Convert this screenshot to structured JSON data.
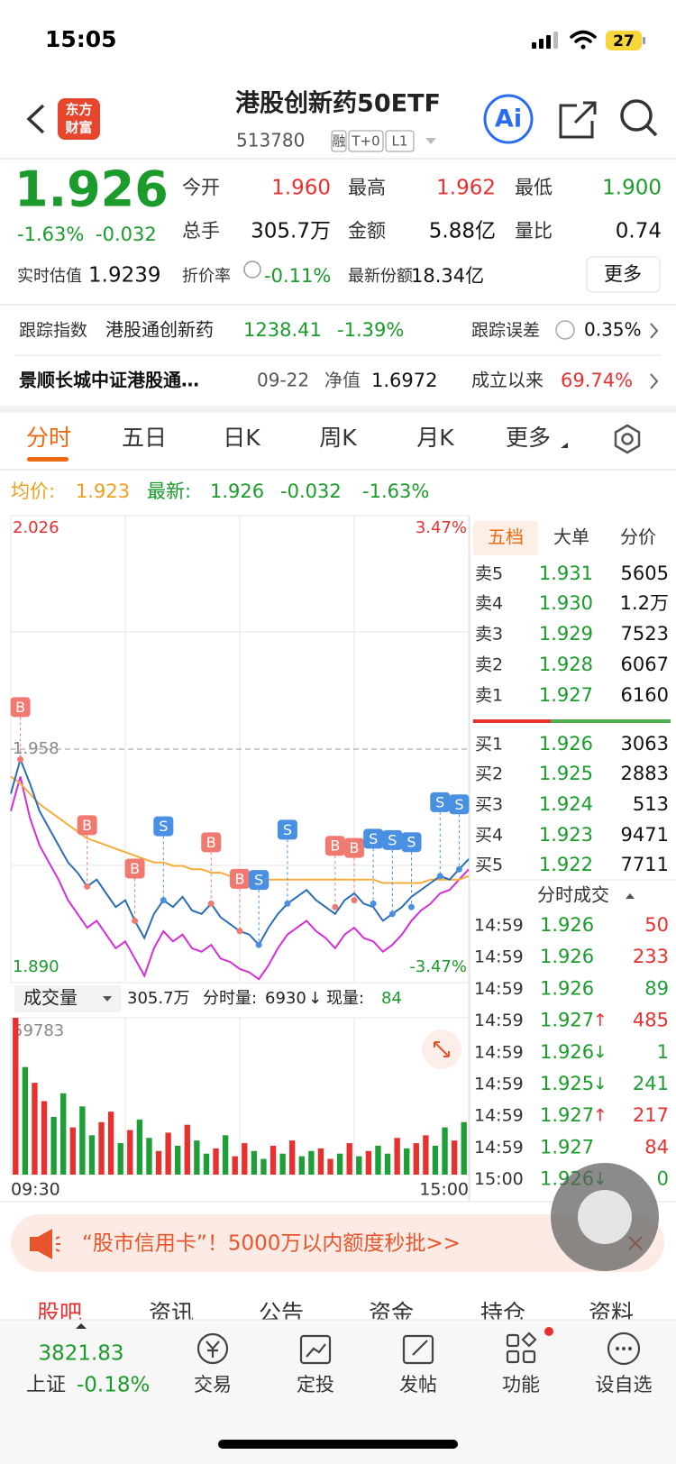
{
  "status_bar": {
    "time": "15:05",
    "battery": "27"
  },
  "header": {
    "logo": [
      "东方",
      "财富"
    ],
    "title": "港股创新药50ETF",
    "code": "513780",
    "tags": [
      "融",
      "T+0",
      "L1"
    ],
    "ai": "Ai"
  },
  "quote": {
    "price": "1.926",
    "change_pct": "-1.63%",
    "change": "-0.032",
    "stats": [
      {
        "label": "今开",
        "value": "1.960"
      },
      {
        "label": "最高",
        "value": "1.962"
      },
      {
        "label": "最低",
        "value": "1.900"
      },
      {
        "label": "总手",
        "value": "305.7万"
      },
      {
        "label": "金额",
        "value": "5.88亿"
      },
      {
        "label": "量比",
        "value": "0.74"
      }
    ],
    "estimate_label": "实时估值",
    "estimate": "1.9239",
    "discount_label": "折价率",
    "discount": "-0.11%",
    "shares_label": "最新份额",
    "shares": "18.34亿",
    "more": "更多"
  },
  "tracking": {
    "label": "跟踪指数",
    "index": "港股通创新药",
    "index_value": "1238.41",
    "index_change": "-1.39%",
    "error_label": "跟踪误差",
    "error": "0.35%"
  },
  "fund": {
    "name": "景顺长城中证港股通…",
    "date": "09-22",
    "nav_label": "净值",
    "nav": "1.6972",
    "since_label": "成立以来",
    "since": "69.74%"
  },
  "tabs": [
    "分时",
    "五日",
    "日K",
    "周K",
    "月K",
    "更多"
  ],
  "summary": {
    "avg_label": "均价:",
    "avg": "1.923",
    "last_label": "最新:",
    "last": "1.926",
    "change": "-0.032",
    "change_pct": "-1.63%"
  },
  "chart_data": [
    {
      "type": "line",
      "ylim": [
        1.89,
        2.026
      ],
      "yticks": [
        2.026,
        1.958,
        {
          "value": 1.89,
          "label": "1.890"
        }
      ],
      "y2lim": [
        -3.47,
        3.47
      ],
      "y2ticks": [
        {
          "value": 3.47,
          "label": "3.47%"
        },
        {
          "value": -3.47,
          "label": "-3.47%"
        }
      ],
      "series": [
        {
          "color": "#d62ed6",
          "values": [
            1.94,
            1.95,
            1.938,
            1.93,
            1.925,
            1.92,
            1.914,
            1.91,
            1.906,
            1.908,
            1.904,
            1.9,
            1.902,
            1.897,
            1.892,
            1.9,
            1.905,
            1.902,
            1.904,
            1.9,
            1.899,
            1.901,
            1.897,
            1.896,
            1.894,
            1.893,
            1.891,
            1.895,
            1.9,
            1.904,
            1.906,
            1.908,
            1.905,
            1.903,
            1.9,
            1.904,
            1.906,
            1.903,
            1.902,
            1.899,
            1.901,
            1.904,
            1.908,
            1.911,
            1.913,
            1.916,
            1.917,
            1.92,
            1.923
          ]
        },
        {
          "color": "#f5ad3b",
          "values": [
            1.95,
            1.948,
            1.945,
            1.942,
            1.94,
            1.938,
            1.936,
            1.934,
            1.932,
            1.931,
            1.93,
            1.929,
            1.928,
            1.927,
            1.926,
            1.925,
            1.925,
            1.924,
            1.924,
            1.923,
            1.923,
            1.922,
            1.922,
            1.921,
            1.921,
            1.921,
            1.92,
            1.92,
            1.92,
            1.92,
            1.92,
            1.92,
            1.92,
            1.92,
            1.92,
            1.92,
            1.92,
            1.92,
            1.92,
            1.919,
            1.919,
            1.919,
            1.919,
            1.919,
            1.92,
            1.92,
            1.92,
            1.92,
            1.921
          ]
        },
        {
          "color": "#2d6db5",
          "values": [
            1.945,
            1.955,
            1.948,
            1.94,
            1.935,
            1.93,
            1.925,
            1.922,
            1.918,
            1.92,
            1.916,
            1.912,
            1.914,
            1.908,
            1.903,
            1.91,
            1.914,
            1.912,
            1.915,
            1.911,
            1.91,
            1.913,
            1.909,
            1.907,
            1.905,
            1.904,
            1.901,
            1.906,
            1.91,
            1.913,
            1.915,
            1.917,
            1.914,
            1.912,
            1.91,
            1.914,
            1.916,
            1.913,
            1.912,
            1.908,
            1.91,
            1.912,
            1.915,
            1.917,
            1.919,
            1.921,
            1.92,
            1.923,
            1.926
          ]
        }
      ],
      "markers": [
        {
          "label": "B",
          "x": 1,
          "value": 1.955
        },
        {
          "label": "B",
          "x": 8,
          "value": 1.918
        },
        {
          "label": "B",
          "x": 13,
          "value": 1.908
        },
        {
          "label": "B",
          "x": 21,
          "value": 1.913
        },
        {
          "label": "B",
          "x": 24,
          "value": 1.905
        },
        {
          "label": "B",
          "x": 34,
          "value": 1.912
        },
        {
          "label": "B",
          "x": 36,
          "value": 1.914
        },
        {
          "label": "S",
          "x": 16,
          "value": 1.914
        },
        {
          "label": "S",
          "x": 26,
          "value": 1.901
        },
        {
          "label": "S",
          "x": 29,
          "value": 1.913
        },
        {
          "label": "S",
          "x": 38,
          "value": 1.913
        },
        {
          "label": "S",
          "x": 40,
          "value": 1.91
        },
        {
          "label": "S",
          "x": 42,
          "value": 1.912
        },
        {
          "label": "S",
          "x": 45,
          "value": 1.921
        },
        {
          "label": "S",
          "x": 47,
          "value": 1.923
        }
      ]
    },
    {
      "type": "bar",
      "title": "成交量",
      "ylim": [
        0,
        59783
      ],
      "yticks": [
        59783
      ],
      "categories": [
        "09:30",
        null,
        null,
        null,
        null,
        null,
        null,
        null,
        null,
        null,
        null,
        null,
        null,
        null,
        null,
        null,
        null,
        null,
        null,
        null,
        null,
        null,
        null,
        null,
        null,
        null,
        null,
        null,
        null,
        null,
        null,
        null,
        null,
        null,
        null,
        null,
        null,
        null,
        null,
        null,
        null,
        null,
        null,
        null,
        null,
        null,
        null,
        "15:00"
      ],
      "values": [
        59783,
        41000,
        35000,
        28000,
        22000,
        31000,
        18000,
        26000,
        15000,
        20000,
        24000,
        12000,
        17000,
        21000,
        14000,
        9000,
        16000,
        11000,
        19000,
        13000,
        8000,
        10000,
        15000,
        7000,
        12000,
        9000,
        6000,
        11000,
        8000,
        13000,
        7000,
        9000,
        10000,
        6000,
        8000,
        12000,
        7000,
        9000,
        11000,
        8000,
        14000,
        10000,
        12000,
        15000,
        11000,
        18000,
        13000,
        20000
      ],
      "colors": [
        "#e8312f",
        "#1e9e36",
        "#e8312f",
        "#e8312f",
        "#1e9e36",
        "#1e9e36",
        "#e8312f",
        "#1e9e36",
        "#1e9e36",
        "#e8312f",
        "#e8312f",
        "#1e9e36",
        "#e8312f",
        "#1e9e36",
        "#1e9e36",
        "#e8312f",
        "#e8312f",
        "#1e9e36",
        "#e8312f",
        "#1e9e36",
        "#1e9e36",
        "#e8312f",
        "#1e9e36",
        "#e8312f",
        "#e8312f",
        "#1e9e36",
        "#1e9e36",
        "#e8312f",
        "#1e9e36",
        "#e8312f",
        "#1e9e36",
        "#1e9e36",
        "#e8312f",
        "#e8312f",
        "#1e9e36",
        "#e8312f",
        "#1e9e36",
        "#e8312f",
        "#1e9e36",
        "#1e9e36",
        "#e8312f",
        "#1e9e36",
        "#e8312f",
        "#e8312f",
        "#1e9e36",
        "#1e9e36",
        "#e8312f",
        "#1e9e36"
      ]
    }
  ],
  "volume_toolbar": {
    "total": "305.7万",
    "interval_label": "分时量:",
    "interval": "6930",
    "arrow": "↓",
    "current_label": "现量:",
    "current": "84"
  },
  "order_book": {
    "tabs": [
      "五档",
      "大单",
      "分价"
    ],
    "asks": [
      {
        "label": "卖5",
        "price": "1.931",
        "volume": "5605"
      },
      {
        "label": "卖4",
        "price": "1.930",
        "volume": "1.2万"
      },
      {
        "label": "卖3",
        "price": "1.929",
        "volume": "7523"
      },
      {
        "label": "卖2",
        "price": "1.928",
        "volume": "6067"
      },
      {
        "label": "卖1",
        "price": "1.927",
        "volume": "6160"
      }
    ],
    "bids": [
      {
        "label": "买1",
        "price": "1.926",
        "volume": "3063"
      },
      {
        "label": "买2",
        "price": "1.925",
        "volume": "2883"
      },
      {
        "label": "买3",
        "price": "1.924",
        "volume": "513"
      },
      {
        "label": "买4",
        "price": "1.923",
        "volume": "9471"
      },
      {
        "label": "买5",
        "price": "1.922",
        "volume": "7711"
      }
    ]
  },
  "trades": {
    "title": "分时成交",
    "rows": [
      {
        "time": "14:59",
        "price": "1.926",
        "volume": "50",
        "color": "#e8312f"
      },
      {
        "time": "14:59",
        "price": "1.926",
        "volume": "233",
        "color": "#e8312f"
      },
      {
        "time": "14:59",
        "price": "1.926",
        "volume": "89",
        "color": "#1e9e36"
      },
      {
        "time": "14:59",
        "price": "1.927",
        "arrow": "↑",
        "volume": "485",
        "color": "#e8312f"
      },
      {
        "time": "14:59",
        "price": "1.926",
        "arrow": "↓",
        "volume": "1",
        "color": "#1e9e36"
      },
      {
        "time": "14:59",
        "price": "1.925",
        "arrow": "↓",
        "volume": "241",
        "color": "#1e9e36"
      },
      {
        "time": "14:59",
        "price": "1.927",
        "arrow": "↑",
        "volume": "217",
        "color": "#e8312f"
      },
      {
        "time": "14:59",
        "price": "1.927",
        "volume": "84",
        "color": "#e8312f"
      },
      {
        "time": "15:00",
        "price": "1.926",
        "arrow": "↓",
        "volume": "0",
        "color": "#1e9e36"
      }
    ]
  },
  "banner": {
    "text": "“股市信用卡”！5000万以内额度秒批>>"
  },
  "section_tabs": [
    "股吧",
    "资讯",
    "公告",
    "资金",
    "持仓",
    "资料"
  ],
  "bottom_nav": {
    "index_value": "3821.83",
    "index_name": "上证",
    "index_change": "-0.18%",
    "items": [
      "交易",
      "定投",
      "发帖",
      "功能",
      "设自选"
    ]
  }
}
